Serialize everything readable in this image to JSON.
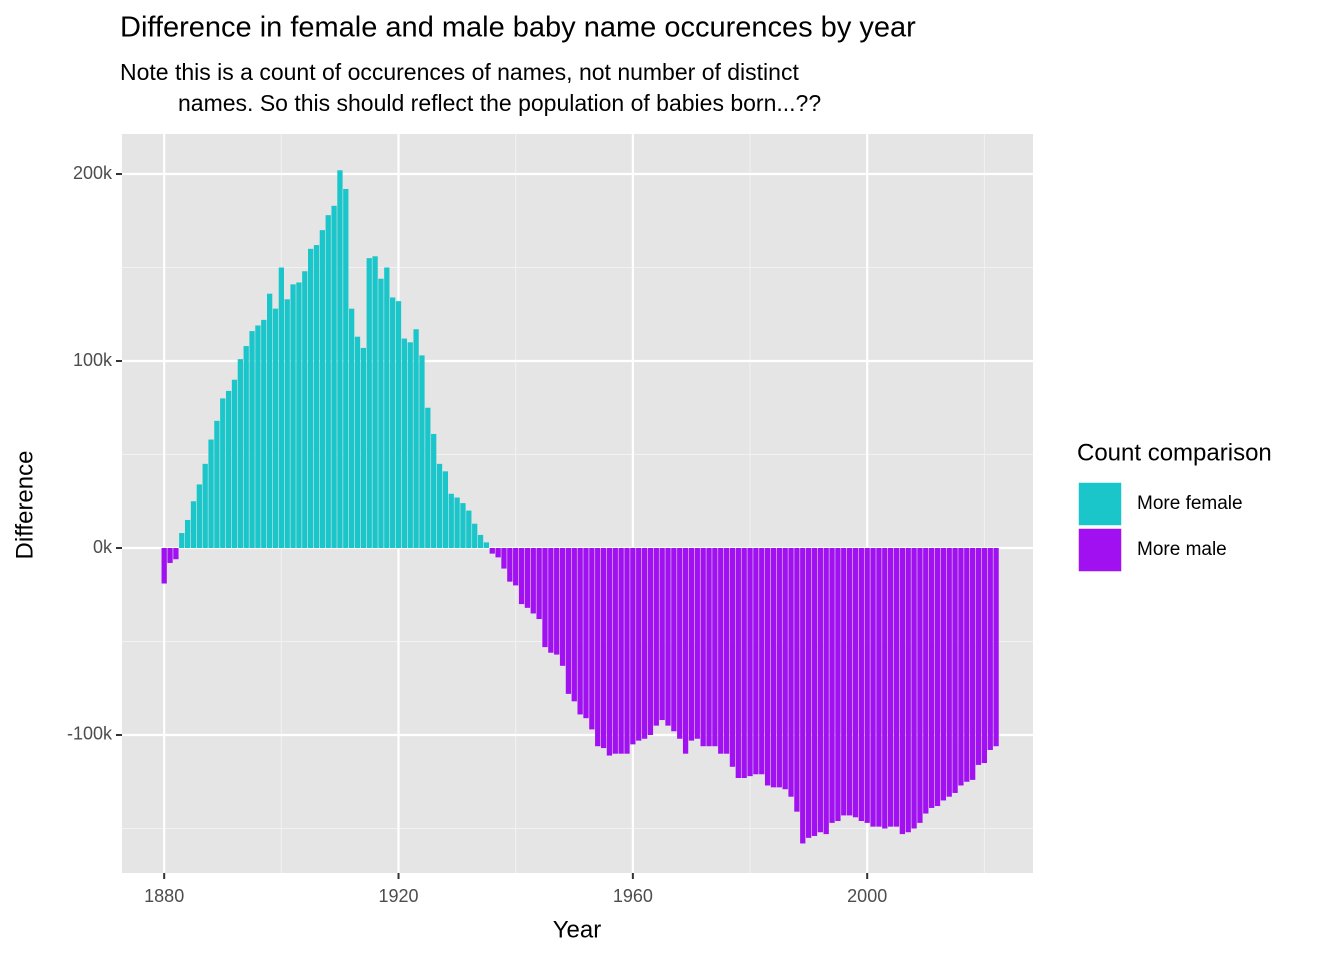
{
  "chart_data": {
    "type": "bar",
    "title": "Difference in female and male baby name occurences by year",
    "subtitle": [
      "Note this is a count of occurences of names, not number of distinct",
      "names. So this should reflect the population of babies born...??"
    ],
    "x_label": "Year",
    "y_label": "Difference",
    "legend_title": "Count comparison",
    "x": [
      1880,
      1881,
      1882,
      1883,
      1884,
      1885,
      1886,
      1887,
      1888,
      1889,
      1890,
      1891,
      1892,
      1893,
      1894,
      1895,
      1896,
      1897,
      1898,
      1899,
      1900,
      1901,
      1902,
      1903,
      1904,
      1905,
      1906,
      1907,
      1908,
      1909,
      1910,
      1911,
      1912,
      1913,
      1914,
      1915,
      1916,
      1917,
      1918,
      1919,
      1920,
      1921,
      1922,
      1923,
      1924,
      1925,
      1926,
      1927,
      1928,
      1929,
      1930,
      1931,
      1932,
      1933,
      1934,
      1935,
      1936,
      1937,
      1938,
      1939,
      1940,
      1941,
      1942,
      1943,
      1944,
      1945,
      1946,
      1947,
      1948,
      1949,
      1950,
      1951,
      1952,
      1953,
      1954,
      1955,
      1956,
      1957,
      1958,
      1959,
      1960,
      1961,
      1962,
      1963,
      1964,
      1965,
      1966,
      1967,
      1968,
      1969,
      1970,
      1971,
      1972,
      1973,
      1974,
      1975,
      1976,
      1977,
      1978,
      1979,
      1980,
      1981,
      1982,
      1983,
      1984,
      1985,
      1986,
      1987,
      1988,
      1989,
      1990,
      1991,
      1992,
      1993,
      1994,
      1995,
      1996,
      1997,
      1998,
      1999,
      2000,
      2001,
      2002,
      2003,
      2004,
      2005,
      2006,
      2007,
      2008,
      2009,
      2010,
      2011,
      2012,
      2013,
      2014,
      2015,
      2016,
      2017,
      2018,
      2019,
      2020,
      2021,
      2022
    ],
    "series": [
      {
        "name": "More female",
        "color": "#1ac6c9",
        "values": [
          null,
          null,
          null,
          8000,
          15000,
          25000,
          34000,
          45000,
          58000,
          68000,
          80000,
          84000,
          90000,
          101000,
          108000,
          116000,
          119000,
          122000,
          136000,
          128000,
          150000,
          133000,
          141000,
          142000,
          148000,
          160000,
          162000,
          170000,
          178000,
          183000,
          202000,
          192000,
          128000,
          113000,
          107000,
          155000,
          156000,
          144000,
          150000,
          134000,
          132000,
          112000,
          110000,
          117000,
          103000,
          75000,
          61000,
          45000,
          41000,
          29000,
          27000,
          24000,
          20000,
          13000,
          7000,
          3000,
          null,
          null,
          null,
          null,
          null,
          null,
          null,
          null,
          null,
          null,
          null,
          null,
          null,
          null,
          null,
          null,
          null,
          null,
          null,
          null,
          null,
          null,
          null,
          null,
          null,
          null,
          null,
          null,
          null,
          null,
          null,
          null,
          null,
          null,
          null,
          null,
          null,
          null,
          null,
          null,
          null,
          null,
          null,
          null,
          null,
          null,
          null,
          null,
          null,
          null,
          null,
          null,
          null,
          null,
          null,
          null,
          null,
          null,
          null,
          null,
          null,
          null,
          null,
          null,
          null,
          null,
          null,
          null,
          null,
          null,
          null,
          null,
          null,
          null,
          null,
          null,
          null,
          null,
          null,
          null,
          null,
          null,
          null,
          null,
          null,
          null,
          null
        ]
      },
      {
        "name": "More male",
        "color": "#a010f0",
        "values": [
          -19000,
          -8000,
          -6000,
          null,
          null,
          null,
          null,
          null,
          null,
          null,
          null,
          null,
          null,
          null,
          null,
          null,
          null,
          null,
          null,
          null,
          null,
          null,
          null,
          null,
          null,
          null,
          null,
          null,
          null,
          null,
          null,
          null,
          null,
          null,
          null,
          null,
          null,
          null,
          null,
          null,
          null,
          null,
          null,
          null,
          null,
          null,
          null,
          null,
          null,
          null,
          null,
          null,
          null,
          null,
          null,
          null,
          -3000,
          -5000,
          -11000,
          -18000,
          -20000,
          -30000,
          -32000,
          -35000,
          -38000,
          -53000,
          -56000,
          -57000,
          -63000,
          -78000,
          -82000,
          -89000,
          -91000,
          -97000,
          -106000,
          -107000,
          -111000,
          -110000,
          -110000,
          -110000,
          -105000,
          -103000,
          -102000,
          -100000,
          -95000,
          -92000,
          -95000,
          -98000,
          -102000,
          -110000,
          -103000,
          -102000,
          -106000,
          -106000,
          -106000,
          -110000,
          -110000,
          -117000,
          -123000,
          -123000,
          -122000,
          -121000,
          -121000,
          -127000,
          -128000,
          -128000,
          -129000,
          -133000,
          -141000,
          -158000,
          -155000,
          -154000,
          -152000,
          -153000,
          -147000,
          -146000,
          -143000,
          -143000,
          -144000,
          -146000,
          -147000,
          -149000,
          -149000,
          -150000,
          -149000,
          -149000,
          -153000,
          -152000,
          -150000,
          -147000,
          -142000,
          -139000,
          -138000,
          -135000,
          -133000,
          -131000,
          -127000,
          -125000,
          -124000,
          -116000,
          -115000,
          -108000,
          -106000
        ]
      }
    ],
    "xlim": [
      1872.8,
      2028.3
    ],
    "xticks": [
      1880,
      1920,
      1960,
      2000
    ],
    "ylim": [
      -173800,
      221400
    ],
    "yticks": [
      {
        "value": -100000,
        "label": "-100k"
      },
      {
        "value": 0,
        "label": "0k"
      },
      {
        "value": 100000,
        "label": "100k"
      },
      {
        "value": 200000,
        "label": "200k"
      }
    ],
    "grid": true,
    "legend_position": "right"
  }
}
